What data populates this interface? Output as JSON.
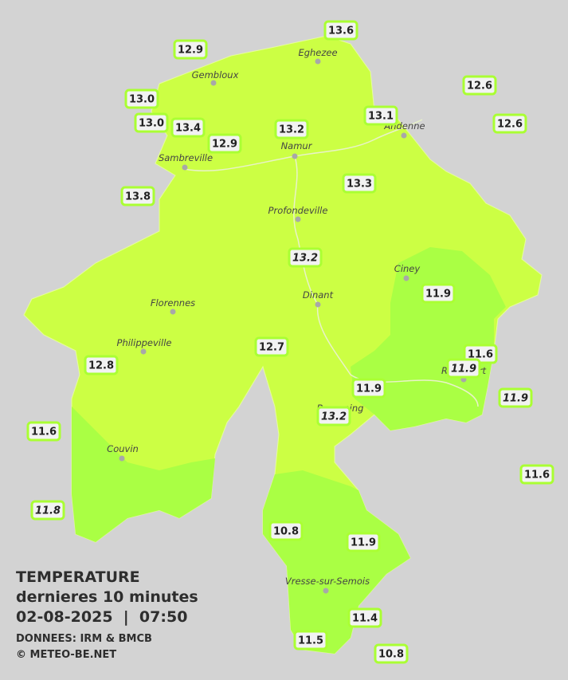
{
  "header": {
    "title": "TEMPERATURE",
    "subtitle": "dernieres 10 minutes",
    "datetime": "02-08-2025  |  07:50",
    "source": "DONNEES: IRM & BMCB",
    "credit": "© METEO-BE.NET"
  },
  "towns": [
    {
      "name": "Eghezee"
    },
    {
      "name": "Gembloux"
    },
    {
      "name": "Andenne"
    },
    {
      "name": "Namur"
    },
    {
      "name": "Sambreville"
    },
    {
      "name": "Profondeville"
    },
    {
      "name": "Ciney"
    },
    {
      "name": "Dinant"
    },
    {
      "name": "Florennes"
    },
    {
      "name": "Philippeville"
    },
    {
      "name": "Rochefort"
    },
    {
      "name": "Beauraing"
    },
    {
      "name": "Couvin"
    },
    {
      "name": "Vresse-sur-Semois"
    }
  ],
  "stations": [
    {
      "text": "12.9"
    },
    {
      "text": "13.6"
    },
    {
      "text": "12.6"
    },
    {
      "text": "13.0"
    },
    {
      "text": "13.0"
    },
    {
      "text": "13.4"
    },
    {
      "text": "12.9"
    },
    {
      "text": "13.2"
    },
    {
      "text": "13.1"
    },
    {
      "text": "12.6"
    },
    {
      "text": "13.8"
    },
    {
      "text": "13.3"
    },
    {
      "text": "13.2",
      "italic": true
    },
    {
      "text": "11.9"
    },
    {
      "text": "12.7"
    },
    {
      "text": "11.6"
    },
    {
      "text": "11.9",
      "italic": true
    },
    {
      "text": "12.8"
    },
    {
      "text": "11.9"
    },
    {
      "text": "11.9",
      "italic": true
    },
    {
      "text": "13.2",
      "italic": true
    },
    {
      "text": "11.6"
    },
    {
      "text": "11.6"
    },
    {
      "text": "11.8",
      "italic": true
    },
    {
      "text": "10.8"
    },
    {
      "text": "11.9"
    },
    {
      "text": "11.4"
    },
    {
      "text": "11.5"
    },
    {
      "text": "10.8"
    }
  ]
}
